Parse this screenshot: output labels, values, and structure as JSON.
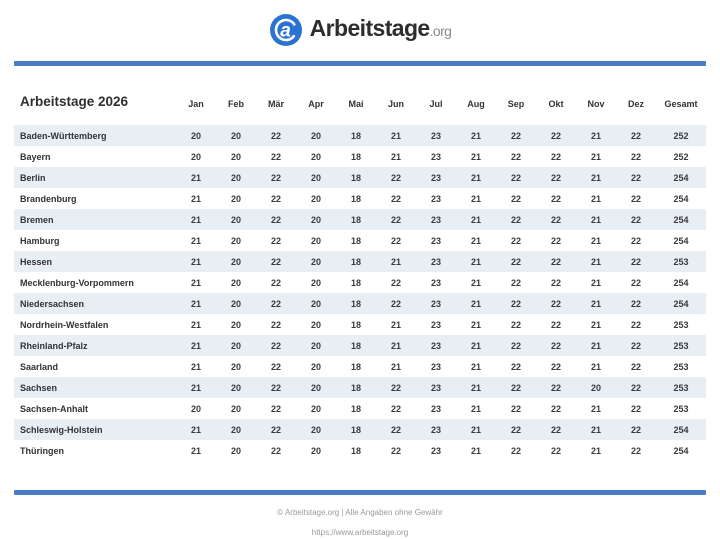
{
  "logo": {
    "name": "Arbeitstage",
    "tld": ".org",
    "icon": "a-circle-icon"
  },
  "table": {
    "title": "Arbeitstage 2026",
    "columns": [
      "Jan",
      "Feb",
      "Mär",
      "Apr",
      "Mai",
      "Jun",
      "Jul",
      "Aug",
      "Sep",
      "Okt",
      "Nov",
      "Dez",
      "Gesamt"
    ],
    "rows": [
      {
        "state": "Baden-Württemberg",
        "values": [
          20,
          20,
          22,
          20,
          18,
          21,
          23,
          21,
          22,
          22,
          21,
          22
        ],
        "total": 252
      },
      {
        "state": "Bayern",
        "values": [
          20,
          20,
          22,
          20,
          18,
          21,
          23,
          21,
          22,
          22,
          21,
          22
        ],
        "total": 252
      },
      {
        "state": "Berlin",
        "values": [
          21,
          20,
          22,
          20,
          18,
          22,
          23,
          21,
          22,
          22,
          21,
          22
        ],
        "total": 254
      },
      {
        "state": "Brandenburg",
        "values": [
          21,
          20,
          22,
          20,
          18,
          22,
          23,
          21,
          22,
          22,
          21,
          22
        ],
        "total": 254
      },
      {
        "state": "Bremen",
        "values": [
          21,
          20,
          22,
          20,
          18,
          22,
          23,
          21,
          22,
          22,
          21,
          22
        ],
        "total": 254
      },
      {
        "state": "Hamburg",
        "values": [
          21,
          20,
          22,
          20,
          18,
          22,
          23,
          21,
          22,
          22,
          21,
          22
        ],
        "total": 254
      },
      {
        "state": "Hessen",
        "values": [
          21,
          20,
          22,
          20,
          18,
          21,
          23,
          21,
          22,
          22,
          21,
          22
        ],
        "total": 253
      },
      {
        "state": "Mecklenburg-Vorpommern",
        "values": [
          21,
          20,
          22,
          20,
          18,
          22,
          23,
          21,
          22,
          22,
          21,
          22
        ],
        "total": 254
      },
      {
        "state": "Niedersachsen",
        "values": [
          21,
          20,
          22,
          20,
          18,
          22,
          23,
          21,
          22,
          22,
          21,
          22
        ],
        "total": 254
      },
      {
        "state": "Nordrhein-Westfalen",
        "values": [
          21,
          20,
          22,
          20,
          18,
          21,
          23,
          21,
          22,
          22,
          21,
          22
        ],
        "total": 253
      },
      {
        "state": "Rheinland-Pfalz",
        "values": [
          21,
          20,
          22,
          20,
          18,
          21,
          23,
          21,
          22,
          22,
          21,
          22
        ],
        "total": 253
      },
      {
        "state": "Saarland",
        "values": [
          21,
          20,
          22,
          20,
          18,
          21,
          23,
          21,
          22,
          22,
          21,
          22
        ],
        "total": 253
      },
      {
        "state": "Sachsen",
        "values": [
          21,
          20,
          22,
          20,
          18,
          22,
          23,
          21,
          22,
          22,
          20,
          22
        ],
        "total": 253
      },
      {
        "state": "Sachsen-Anhalt",
        "values": [
          20,
          20,
          22,
          20,
          18,
          22,
          23,
          21,
          22,
          22,
          21,
          22
        ],
        "total": 253
      },
      {
        "state": "Schleswig-Holstein",
        "values": [
          21,
          20,
          22,
          20,
          18,
          22,
          23,
          21,
          22,
          22,
          21,
          22
        ],
        "total": 254
      },
      {
        "state": "Thüringen",
        "values": [
          21,
          20,
          22,
          20,
          18,
          22,
          23,
          21,
          22,
          22,
          21,
          22
        ],
        "total": 254
      }
    ]
  },
  "footer": {
    "copyright": "© Arbeitstage.org | Alle Angaben ohne Gewähr",
    "url": "https://www.arbeitstage.org"
  },
  "colors": {
    "accent": "#4a7cc4",
    "stripe": "#e7eef4",
    "logo_circle": "#2c72d2"
  }
}
